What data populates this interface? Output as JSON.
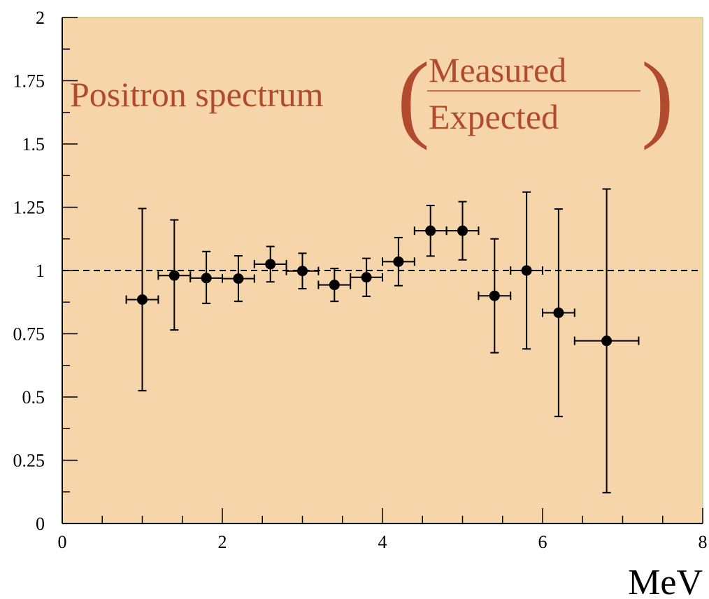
{
  "chart_data": {
    "type": "scatter",
    "title": {
      "main": "Positron spectrum",
      "numerator": "Measured",
      "denominator": "Expected"
    },
    "xlabel": "MeV",
    "ylabel": "",
    "xlim": [
      0,
      8
    ],
    "ylim": [
      0,
      2
    ],
    "x_ticks": [
      "0",
      "2",
      "4",
      "6",
      "8"
    ],
    "y_ticks": [
      "0",
      "0.25",
      "0.5",
      "0.75",
      "1",
      "1.25",
      "1.5",
      "1.75",
      "2"
    ],
    "reference_line": {
      "y": 1,
      "style": "dashed"
    },
    "grid": false,
    "plot_background": "#f5d5a9",
    "title_color": "#b24a2e",
    "marker_color": "#000000",
    "points": [
      {
        "x": 1.0,
        "y": 0.885,
        "xerr": 0.2,
        "yerr_low": 0.36,
        "yerr_high": 0.36
      },
      {
        "x": 1.4,
        "y": 0.98,
        "xerr": 0.2,
        "yerr_low": 0.215,
        "yerr_high": 0.22
      },
      {
        "x": 1.8,
        "y": 0.97,
        "xerr": 0.2,
        "yerr_low": 0.1,
        "yerr_high": 0.105
      },
      {
        "x": 2.2,
        "y": 0.968,
        "xerr": 0.2,
        "yerr_low": 0.09,
        "yerr_high": 0.09
      },
      {
        "x": 2.6,
        "y": 1.025,
        "xerr": 0.2,
        "yerr_low": 0.07,
        "yerr_high": 0.07
      },
      {
        "x": 3.0,
        "y": 0.998,
        "xerr": 0.2,
        "yerr_low": 0.07,
        "yerr_high": 0.07
      },
      {
        "x": 3.4,
        "y": 0.943,
        "xerr": 0.2,
        "yerr_low": 0.065,
        "yerr_high": 0.065
      },
      {
        "x": 3.8,
        "y": 0.973,
        "xerr": 0.2,
        "yerr_low": 0.075,
        "yerr_high": 0.075
      },
      {
        "x": 4.2,
        "y": 1.035,
        "xerr": 0.2,
        "yerr_low": 0.095,
        "yerr_high": 0.095
      },
      {
        "x": 4.6,
        "y": 1.157,
        "xerr": 0.2,
        "yerr_low": 0.1,
        "yerr_high": 0.1
      },
      {
        "x": 5.0,
        "y": 1.157,
        "xerr": 0.2,
        "yerr_low": 0.115,
        "yerr_high": 0.115
      },
      {
        "x": 5.4,
        "y": 0.9,
        "xerr": 0.2,
        "yerr_low": 0.225,
        "yerr_high": 0.225
      },
      {
        "x": 5.8,
        "y": 1.0,
        "xerr": 0.2,
        "yerr_low": 0.31,
        "yerr_high": 0.31
      },
      {
        "x": 6.2,
        "y": 0.833,
        "xerr": 0.2,
        "yerr_low": 0.41,
        "yerr_high": 0.41
      },
      {
        "x": 6.8,
        "y": 0.722,
        "xerr": 0.4,
        "yerr_low": 0.6,
        "yerr_high": 0.6
      }
    ]
  }
}
